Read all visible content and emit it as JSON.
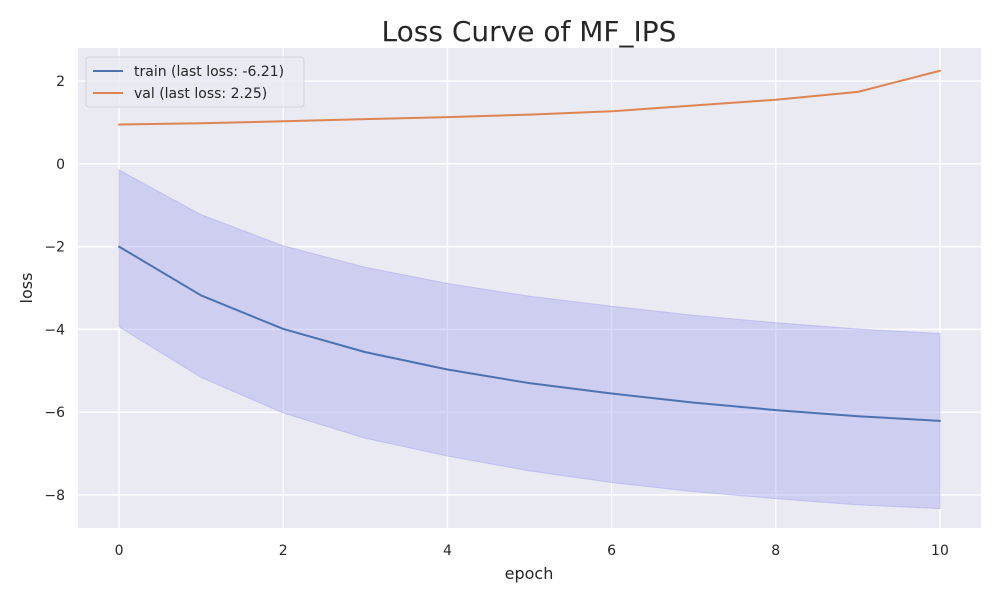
{
  "chart_data": {
    "type": "line",
    "title": "Loss Curve of MF_IPS",
    "xlabel": "epoch",
    "ylabel": "loss",
    "xlim": [
      -0.5,
      10.5
    ],
    "ylim": [
      -8.8,
      2.8
    ],
    "xticks": [
      0,
      2,
      4,
      6,
      8,
      10
    ],
    "yticks": [
      2,
      0,
      -2,
      -4,
      -6,
      -8
    ],
    "grid": true,
    "legend_position": "top-left",
    "background": "#eaeaf2",
    "series": [
      {
        "name": "train (last loss: -6.21)",
        "color": "#4c72b0",
        "x": [
          0,
          1,
          2,
          3,
          4,
          5,
          6,
          7,
          8,
          9,
          10
        ],
        "values": [
          -2.0,
          -3.18,
          -3.99,
          -4.55,
          -4.97,
          -5.3,
          -5.55,
          -5.77,
          -5.95,
          -6.1,
          -6.21
        ],
        "band": {
          "color": "#a8a8f0",
          "upper": [
            -0.15,
            -1.23,
            -1.98,
            -2.5,
            -2.89,
            -3.2,
            -3.44,
            -3.66,
            -3.84,
            -3.99,
            -4.1
          ],
          "lower": [
            -3.94,
            -5.16,
            -6.02,
            -6.63,
            -7.06,
            -7.42,
            -7.7,
            -7.92,
            -8.09,
            -8.24,
            -8.33
          ]
        }
      },
      {
        "name": "val (last loss: 2.25)",
        "color": "#dd8452",
        "x": [
          0,
          1,
          2,
          3,
          4,
          5,
          6,
          7,
          8,
          9,
          10
        ],
        "values": [
          0.95,
          0.98,
          1.03,
          1.08,
          1.13,
          1.19,
          1.27,
          1.41,
          1.55,
          1.74,
          2.25
        ]
      }
    ]
  }
}
